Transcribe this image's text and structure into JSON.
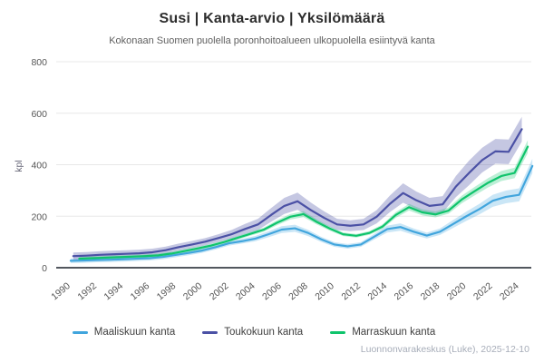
{
  "header": {
    "title": "Susi | Kanta-arvio | Yksilömäärä",
    "subtitle": "Kokonaan Suomen puolella poronhoitoalueen ulkopuolella esiintyvä kanta"
  },
  "attribution": "Luonnonvarakeskus (Luke), 2025-12-10",
  "chart_data": {
    "type": "line",
    "title": "Susi | Kanta-arvio | Yksilömäärä",
    "subtitle": "Kokonaan Suomen puolella poronhoitoalueen ulkopuolella esiintyvä kanta",
    "xlabel": "",
    "ylabel": "kpl",
    "ylim": [
      0,
      800
    ],
    "yticks": [
      0,
      200,
      400,
      600,
      800
    ],
    "xticks": [
      1990,
      1992,
      1994,
      1996,
      1998,
      2000,
      2002,
      2004,
      2006,
      2008,
      2010,
      2012,
      2014,
      2016,
      2018,
      2020,
      2022,
      2024
    ],
    "grid": "horizontal",
    "legend_position": "bottom",
    "axis_color": "#3a3f47",
    "grid_color": "#e8e8e8",
    "tick_color": "#555555",
    "years": [
      1990,
      1991,
      1992,
      1993,
      1994,
      1995,
      1996,
      1997,
      1998,
      1999,
      2000,
      2001,
      2002,
      2003,
      2004,
      2005,
      2006,
      2007,
      2008,
      2009,
      2010,
      2011,
      2012,
      2013,
      2014,
      2015,
      2016,
      2017,
      2018,
      2019,
      2020,
      2021,
      2022,
      2023,
      2024,
      2025
    ],
    "series": [
      {
        "name": "Maaliskuun kanta",
        "color": "#41a5dd",
        "band_opacity": 0.28,
        "band_fraction": 0.09,
        "band_min": 9,
        "band_max": 28,
        "x_offset": 0.2,
        "values": [
          27,
          28,
          30,
          31,
          33,
          35,
          37,
          42,
          50,
          58,
          67,
          80,
          95,
          103,
          113,
          130,
          148,
          153,
          135,
          110,
          90,
          83,
          90,
          120,
          150,
          158,
          140,
          125,
          140,
          170,
          200,
          228,
          260,
          275,
          283,
          395
        ]
      },
      {
        "name": "Toukokuun kanta",
        "color": "#4b51a5",
        "band_opacity": 0.32,
        "band_fraction": 0.13,
        "band_min": 14,
        "band_max": 48,
        "x_offset": 0.4,
        "values": [
          45,
          47,
          50,
          52,
          54,
          56,
          60,
          68,
          80,
          90,
          101,
          115,
          130,
          150,
          168,
          205,
          240,
          258,
          224,
          194,
          168,
          163,
          168,
          198,
          248,
          290,
          262,
          240,
          246,
          315,
          368,
          418,
          452,
          450,
          538,
          null
        ]
      },
      {
        "name": "Marraskuun kanta",
        "color": "#0fc46c",
        "band_opacity": 0.28,
        "band_fraction": 0.055,
        "band_min": 7,
        "band_max": 25,
        "x_offset": 0.85,
        "values": [
          35,
          37,
          39,
          41,
          43,
          45,
          48,
          55,
          65,
          75,
          86,
          100,
          116,
          132,
          148,
          175,
          198,
          208,
          178,
          152,
          130,
          124,
          135,
          160,
          205,
          235,
          215,
          207,
          222,
          265,
          298,
          330,
          356,
          368,
          470,
          null
        ]
      }
    ]
  }
}
